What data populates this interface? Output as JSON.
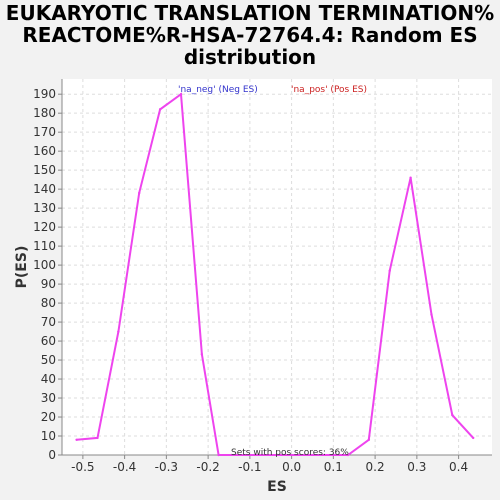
{
  "title_lines": [
    "EUKARYOTIC TRANSLATION TERMINATION%",
    "REACTOME%R-HSA-72764.4: Random ES",
    "distribution"
  ],
  "chart_data": {
    "type": "line",
    "title": "EUKARYOTIC TRANSLATION TERMINATION% REACTOME%R-HSA-72764.4: Random ES distribution",
    "xlabel": "ES",
    "ylabel": "P(ES)",
    "xlim": [
      -0.55,
      0.48
    ],
    "ylim": [
      0,
      198
    ],
    "x_ticks": [
      -0.5,
      -0.4,
      -0.3,
      -0.2,
      -0.1,
      0.0,
      0.1,
      0.2,
      0.3,
      0.4
    ],
    "x_tick_labels": [
      "-0.5",
      "-0.4",
      "-0.3",
      "-0.2",
      "-0.1",
      "0.0",
      "0.1",
      "0.2",
      "0.3",
      "0.4"
    ],
    "y_ticks": [
      0,
      10,
      20,
      30,
      40,
      50,
      60,
      70,
      80,
      90,
      100,
      110,
      120,
      130,
      140,
      150,
      160,
      170,
      180,
      190
    ],
    "grid": true,
    "legend": [
      {
        "label": "'na_neg' (Neg ES)",
        "color": "#3333cc"
      },
      {
        "label": "'na_pos' (Pos ES)",
        "color": "#cc2222"
      }
    ],
    "legend_placement": "top",
    "annotation": "Sets with pos scores: 36%",
    "series": [
      {
        "color": "#ee44ee",
        "points": [
          [
            -0.515,
            8
          ],
          [
            -0.465,
            9
          ],
          [
            -0.415,
            65
          ],
          [
            -0.365,
            138
          ],
          [
            -0.315,
            182
          ],
          [
            -0.265,
            190
          ],
          [
            -0.215,
            53
          ],
          [
            -0.175,
            0
          ],
          [
            0.135,
            0
          ],
          [
            0.185,
            8
          ],
          [
            0.235,
            97
          ],
          [
            0.285,
            146
          ],
          [
            0.335,
            74
          ],
          [
            0.385,
            21
          ],
          [
            0.435,
            9
          ]
        ]
      }
    ]
  }
}
